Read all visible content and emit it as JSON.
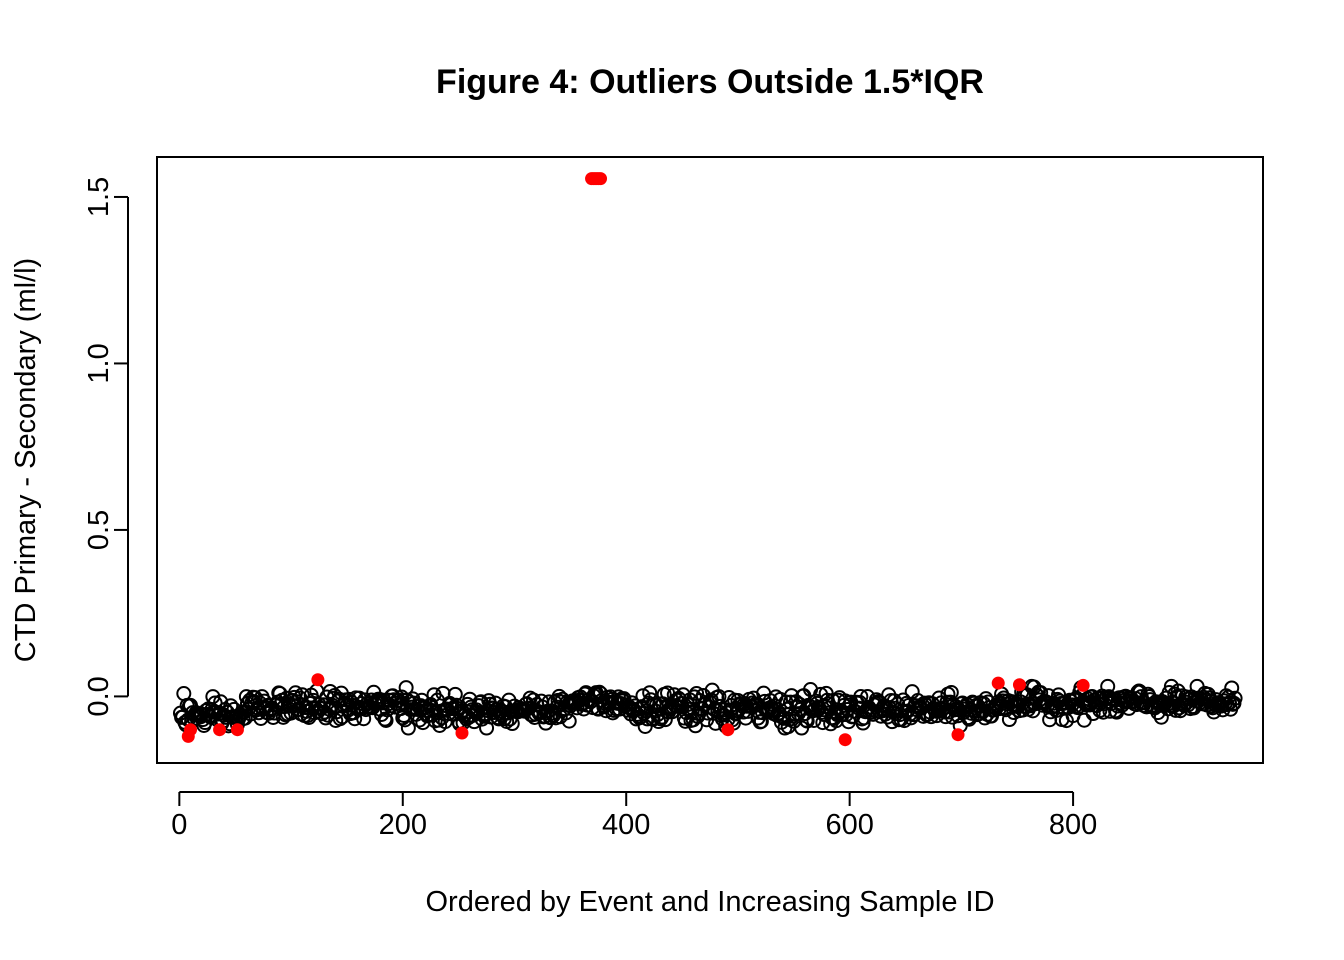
{
  "chart_data": {
    "type": "scatter",
    "title": "Figure 4: Outliers Outside 1.5*IQR",
    "xlabel": "Ordered by Event and Increasing Sample ID",
    "ylabel": "CTD  Primary - Secondary (ml/l)",
    "xlim": [
      -20,
      970
    ],
    "ylim": [
      -0.2,
      1.62
    ],
    "x_ticks": [
      0,
      200,
      400,
      600,
      800
    ],
    "y_ticks": [
      0.0,
      0.5,
      1.0,
      1.5
    ],
    "x_tick_labels": [
      "0",
      "200",
      "400",
      "600",
      "800"
    ],
    "y_tick_labels": [
      "0.0",
      "0.5",
      "1.0",
      "1.5"
    ],
    "grid": false,
    "series": [
      {
        "role": "observations",
        "marker": "open-circle",
        "color": "#000000",
        "n": 945,
        "x_range": [
          1,
          945
        ],
        "segments": [
          {
            "x": [
              1,
              10
            ],
            "mean": -0.04,
            "spread": 0.03
          },
          {
            "x": [
              10,
              60
            ],
            "mean": -0.06,
            "spread": 0.02
          },
          {
            "x": [
              60,
              200
            ],
            "mean": -0.03,
            "spread": 0.02
          },
          {
            "x": [
              200,
              260
            ],
            "mean": -0.04,
            "spread": 0.025
          },
          {
            "x": [
              260,
              350
            ],
            "mean": -0.04,
            "spread": 0.02
          },
          {
            "x": [
              350,
              400
            ],
            "mean": -0.01,
            "spread": 0.02
          },
          {
            "x": [
              400,
              600
            ],
            "mean": -0.04,
            "spread": 0.025
          },
          {
            "x": [
              600,
              730
            ],
            "mean": -0.04,
            "spread": 0.02
          },
          {
            "x": [
              730,
              945
            ],
            "mean": -0.02,
            "spread": 0.02
          }
        ]
      },
      {
        "role": "outliers",
        "marker": "filled-circle",
        "color": "#ff0000",
        "points": [
          {
            "x": 8,
            "y": -0.12
          },
          {
            "x": 10,
            "y": -0.1
          },
          {
            "x": 36,
            "y": -0.1
          },
          {
            "x": 52,
            "y": -0.1
          },
          {
            "x": 124,
            "y": 0.05
          },
          {
            "x": 253,
            "y": -0.11
          },
          {
            "x": 369,
            "y": 1.555
          },
          {
            "x": 371,
            "y": 1.555
          },
          {
            "x": 373,
            "y": 1.555
          },
          {
            "x": 375,
            "y": 1.555
          },
          {
            "x": 377,
            "y": 1.555
          },
          {
            "x": 491,
            "y": -0.1
          },
          {
            "x": 596,
            "y": -0.13
          },
          {
            "x": 697,
            "y": -0.115
          },
          {
            "x": 733,
            "y": 0.04
          },
          {
            "x": 752,
            "y": 0.035
          },
          {
            "x": 809,
            "y": 0.033
          }
        ]
      }
    ]
  }
}
